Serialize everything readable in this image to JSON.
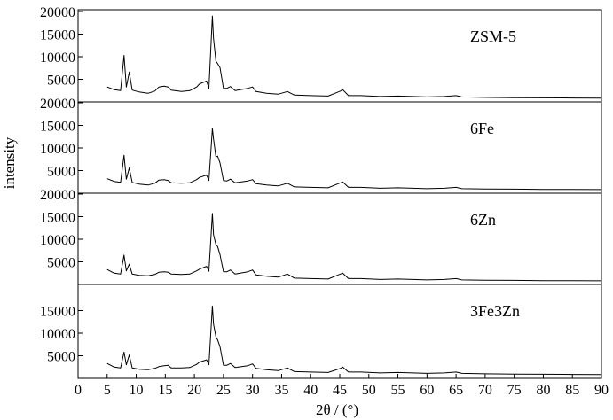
{
  "chart_data": {
    "type": "line",
    "xlabel": "2θ / (°)",
    "ylabel": "intensity",
    "xlim": [
      0,
      90
    ],
    "ylim": [
      0,
      20000
    ],
    "xticks": [
      "0",
      "5",
      "10",
      "15",
      "20",
      "25",
      "30",
      "35",
      "40",
      "45",
      "50",
      "55",
      "60",
      "65",
      "70",
      "75",
      "80",
      "85",
      "90"
    ],
    "yticks": [
      "5000",
      "10000",
      "15000",
      "20000"
    ],
    "grid": false,
    "legend": "none",
    "panels": [
      {
        "label": "ZSM-5",
        "yticks": [
          "5000",
          "10000",
          "15000",
          "20000"
        ],
        "points": [
          [
            5,
            3300
          ],
          [
            6.2,
            2700
          ],
          [
            7.3,
            2500
          ],
          [
            7.9,
            10300
          ],
          [
            8.3,
            3300
          ],
          [
            8.8,
            6600
          ],
          [
            9.3,
            2600
          ],
          [
            10.5,
            2200
          ],
          [
            12,
            1900
          ],
          [
            13.2,
            2400
          ],
          [
            13.9,
            3300
          ],
          [
            14.8,
            3500
          ],
          [
            15.5,
            3300
          ],
          [
            16,
            2600
          ],
          [
            17.8,
            2300
          ],
          [
            19.2,
            2500
          ],
          [
            20.4,
            3300
          ],
          [
            20.9,
            4000
          ],
          [
            22.1,
            4600
          ],
          [
            22.5,
            3000
          ],
          [
            23.1,
            19000
          ],
          [
            23.3,
            14000
          ],
          [
            23.7,
            9000
          ],
          [
            24,
            8500
          ],
          [
            24.4,
            7600
          ],
          [
            25,
            3000
          ],
          [
            25.6,
            3000
          ],
          [
            26.2,
            3400
          ],
          [
            27,
            2500
          ],
          [
            29.2,
            3000
          ],
          [
            30,
            3300
          ],
          [
            30.6,
            2300
          ],
          [
            32.4,
            1900
          ],
          [
            34.4,
            1700
          ],
          [
            36,
            2300
          ],
          [
            37.2,
            1500
          ],
          [
            40,
            1400
          ],
          [
            43,
            1300
          ],
          [
            45.1,
            2400
          ],
          [
            45.5,
            2700
          ],
          [
            46.5,
            1400
          ],
          [
            48.6,
            1400
          ],
          [
            52,
            1200
          ],
          [
            55,
            1300
          ],
          [
            60,
            1100
          ],
          [
            63,
            1200
          ],
          [
            65,
            1400
          ],
          [
            66,
            1100
          ],
          [
            70,
            1000
          ],
          [
            75,
            950
          ],
          [
            80,
            900
          ],
          [
            85,
            870
          ],
          [
            90,
            850
          ]
        ]
      },
      {
        "label": "6Fe",
        "yticks": [
          "5000",
          "10000",
          "15000",
          "20000"
        ],
        "points": [
          [
            5,
            3200
          ],
          [
            6.2,
            2600
          ],
          [
            7.3,
            2400
          ],
          [
            7.9,
            8400
          ],
          [
            8.3,
            3100
          ],
          [
            8.8,
            5600
          ],
          [
            9.3,
            2400
          ],
          [
            10.5,
            2000
          ],
          [
            12,
            1800
          ],
          [
            13.2,
            2200
          ],
          [
            13.9,
            2900
          ],
          [
            14.8,
            3000
          ],
          [
            15.5,
            2800
          ],
          [
            16,
            2300
          ],
          [
            17.8,
            2200
          ],
          [
            19.2,
            2300
          ],
          [
            20.4,
            3000
          ],
          [
            20.9,
            3500
          ],
          [
            22.1,
            4000
          ],
          [
            22.5,
            2800
          ],
          [
            23.1,
            14300
          ],
          [
            23.3,
            12000
          ],
          [
            23.7,
            8000
          ],
          [
            24,
            8200
          ],
          [
            24.4,
            6700
          ],
          [
            25,
            2800
          ],
          [
            25.6,
            2700
          ],
          [
            26.2,
            3100
          ],
          [
            27,
            2300
          ],
          [
            29.2,
            2700
          ],
          [
            30,
            3000
          ],
          [
            30.6,
            2100
          ],
          [
            32.4,
            1800
          ],
          [
            34.4,
            1600
          ],
          [
            36,
            2200
          ],
          [
            37.2,
            1400
          ],
          [
            40,
            1300
          ],
          [
            43,
            1200
          ],
          [
            45.1,
            2300
          ],
          [
            45.5,
            2500
          ],
          [
            46.5,
            1300
          ],
          [
            48.6,
            1300
          ],
          [
            52,
            1100
          ],
          [
            55,
            1200
          ],
          [
            60,
            1000
          ],
          [
            63,
            1100
          ],
          [
            65,
            1300
          ],
          [
            66,
            1000
          ],
          [
            70,
            950
          ],
          [
            75,
            900
          ],
          [
            80,
            850
          ],
          [
            85,
            820
          ],
          [
            90,
            800
          ]
        ]
      },
      {
        "label": "6Zn",
        "yticks": [
          "5000",
          "10000",
          "15000",
          "20000"
        ],
        "points": [
          [
            5,
            3300
          ],
          [
            6.2,
            2500
          ],
          [
            7.3,
            2300
          ],
          [
            7.9,
            6500
          ],
          [
            8.3,
            3000
          ],
          [
            8.8,
            4500
          ],
          [
            9.3,
            2300
          ],
          [
            10.5,
            2000
          ],
          [
            12,
            1900
          ],
          [
            13.2,
            2200
          ],
          [
            13.9,
            2700
          ],
          [
            14.8,
            2800
          ],
          [
            15.5,
            2700
          ],
          [
            16,
            2300
          ],
          [
            17.8,
            2200
          ],
          [
            19.2,
            2300
          ],
          [
            20.4,
            3000
          ],
          [
            20.9,
            3400
          ],
          [
            22.1,
            4000
          ],
          [
            22.5,
            2900
          ],
          [
            23.1,
            15700
          ],
          [
            23.3,
            11000
          ],
          [
            23.7,
            8800
          ],
          [
            24,
            8400
          ],
          [
            24.4,
            6600
          ],
          [
            25,
            2800
          ],
          [
            25.6,
            2800
          ],
          [
            26.2,
            3200
          ],
          [
            27,
            2300
          ],
          [
            29.2,
            2800
          ],
          [
            30,
            3200
          ],
          [
            30.6,
            2100
          ],
          [
            32.4,
            1800
          ],
          [
            34.4,
            1600
          ],
          [
            36,
            2300
          ],
          [
            37.2,
            1400
          ],
          [
            40,
            1300
          ],
          [
            43,
            1200
          ],
          [
            45.1,
            2300
          ],
          [
            45.5,
            2500
          ],
          [
            46.5,
            1300
          ],
          [
            48.6,
            1300
          ],
          [
            52,
            1100
          ],
          [
            55,
            1200
          ],
          [
            60,
            1000
          ],
          [
            63,
            1100
          ],
          [
            65,
            1300
          ],
          [
            66,
            1000
          ],
          [
            70,
            950
          ],
          [
            75,
            900
          ],
          [
            80,
            850
          ],
          [
            85,
            820
          ],
          [
            90,
            800
          ]
        ]
      },
      {
        "label": "3Fe3Zn",
        "yticks": [
          "5000",
          "10000",
          "15000"
        ],
        "points": [
          [
            5,
            3300
          ],
          [
            6.2,
            2500
          ],
          [
            7.3,
            2300
          ],
          [
            7.9,
            5800
          ],
          [
            8.3,
            3000
          ],
          [
            8.8,
            5200
          ],
          [
            9.3,
            2300
          ],
          [
            10.5,
            2000
          ],
          [
            12,
            1900
          ],
          [
            13.2,
            2200
          ],
          [
            13.9,
            2600
          ],
          [
            14.8,
            2800
          ],
          [
            15.5,
            2900
          ],
          [
            16,
            2300
          ],
          [
            17.8,
            2300
          ],
          [
            19.2,
            2400
          ],
          [
            20.4,
            3100
          ],
          [
            20.9,
            3600
          ],
          [
            22.1,
            4100
          ],
          [
            22.5,
            3000
          ],
          [
            23.1,
            16000
          ],
          [
            23.3,
            12000
          ],
          [
            23.7,
            9200
          ],
          [
            24,
            8500
          ],
          [
            24.4,
            7000
          ],
          [
            25,
            2900
          ],
          [
            25.6,
            2900
          ],
          [
            26.2,
            3300
          ],
          [
            27,
            2400
          ],
          [
            29.2,
            2800
          ],
          [
            30,
            3200
          ],
          [
            30.6,
            2200
          ],
          [
            32.4,
            1900
          ],
          [
            34.4,
            1700
          ],
          [
            36,
            2300
          ],
          [
            37.2,
            1500
          ],
          [
            40,
            1400
          ],
          [
            43,
            1300
          ],
          [
            45.1,
            2200
          ],
          [
            45.5,
            2500
          ],
          [
            46.5,
            1400
          ],
          [
            48.6,
            1400
          ],
          [
            52,
            1200
          ],
          [
            55,
            1300
          ],
          [
            60,
            1100
          ],
          [
            63,
            1200
          ],
          [
            65,
            1400
          ],
          [
            66,
            1100
          ],
          [
            70,
            1000
          ],
          [
            75,
            950
          ],
          [
            80,
            900
          ],
          [
            85,
            870
          ],
          [
            90,
            850
          ]
        ]
      }
    ]
  }
}
